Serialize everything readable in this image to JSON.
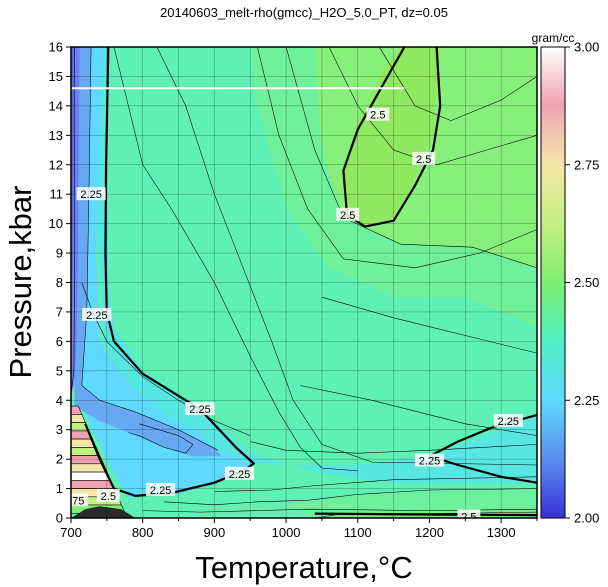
{
  "chart_data": {
    "type": "heatmap",
    "title": "20140603_melt-rho(gmcc)_H2O_5.0_PT, dz=0.05",
    "xlabel": "Temperature,°C",
    "ylabel": "Pressure,kbar",
    "xlim": [
      700,
      1350
    ],
    "ylim": [
      0,
      16
    ],
    "x_ticks": [
      "700",
      "800",
      "900",
      "1000",
      "1100",
      "1200",
      "1300"
    ],
    "y_ticks": [
      "0",
      "1",
      "2",
      "3",
      "4",
      "5",
      "6",
      "7",
      "8",
      "9",
      "10",
      "11",
      "12",
      "13",
      "14",
      "15",
      "16"
    ],
    "grid": true,
    "colorbar": {
      "label": "gram/cc",
      "range": [
        2.0,
        3.0
      ],
      "ticks": [
        "2.00",
        "2.25",
        "2.50",
        "2.75",
        "3.00"
      ],
      "colors": [
        "#3a2fd6",
        "#5a8cf0",
        "#5fd9ff",
        "#4ff0c8",
        "#7cf070",
        "#c2f080",
        "#f5e6a8",
        "#f0a2b4",
        "#ffffff"
      ]
    },
    "contour_labels": [
      {
        "text": "2.25",
        "x": 728,
        "y": 11.0
      },
      {
        "text": "2.25",
        "x": 736,
        "y": 6.9
      },
      {
        "text": "2.25",
        "x": 880,
        "y": 3.7
      },
      {
        "text": "2.25",
        "x": 935,
        "y": 1.5
      },
      {
        "text": "2.25",
        "x": 825,
        "y": 0.95
      },
      {
        "text": "2.5",
        "x": 1128,
        "y": 13.7
      },
      {
        "text": "2.5",
        "x": 1192,
        "y": 12.2
      },
      {
        "text": "2.5",
        "x": 1086,
        "y": 10.3
      },
      {
        "text": "2.25",
        "x": 1310,
        "y": 3.3
      },
      {
        "text": "2.25",
        "x": 1200,
        "y": 1.95
      },
      {
        "text": "2.5",
        "x": 1255,
        "y": 0.05
      },
      {
        "text": ".75",
        "x": 708,
        "y": 0.6
      },
      {
        "text": "2.5",
        "x": 752,
        "y": 0.75
      }
    ],
    "white_line": {
      "x": [
        700,
        1165
      ],
      "y": [
        14.6,
        14.6
      ]
    }
  }
}
